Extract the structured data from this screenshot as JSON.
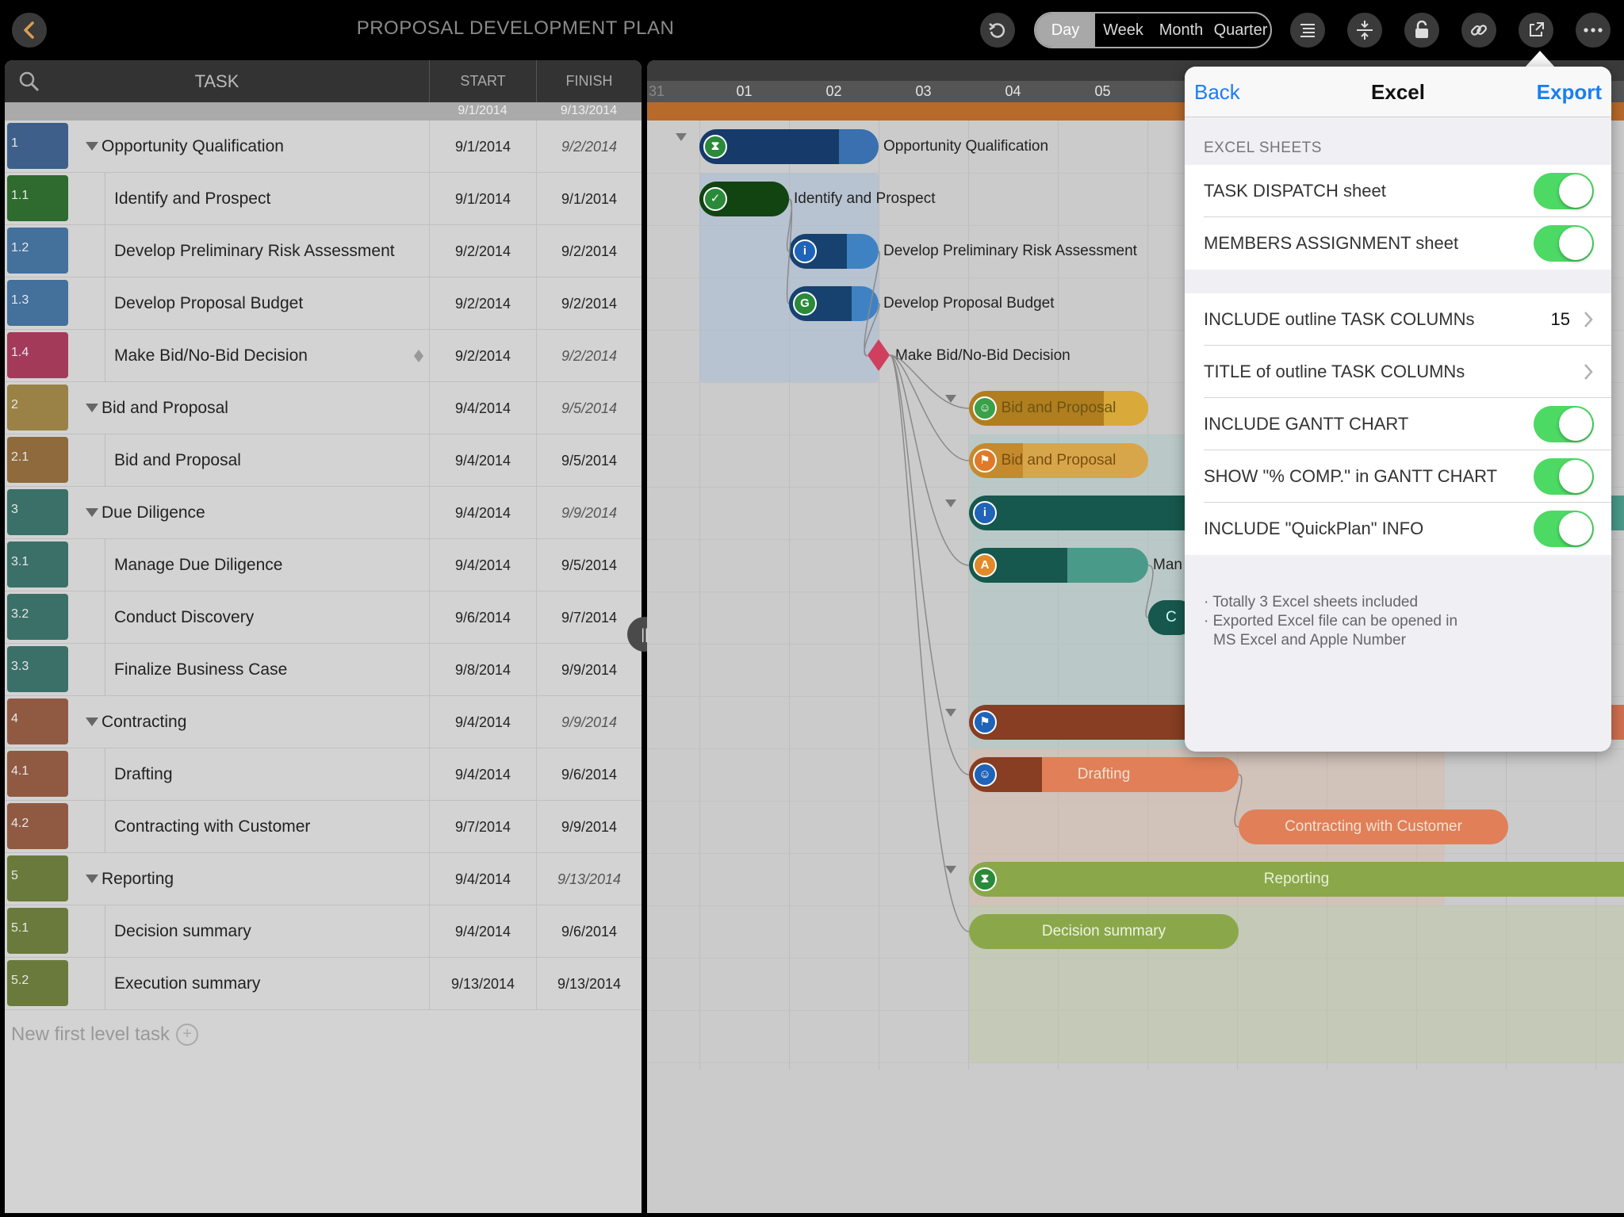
{
  "header": {
    "title": "PROPOSAL DEVELOPMENT PLAN",
    "scale_tabs": [
      {
        "label": "Day",
        "active": true
      },
      {
        "label": "Week",
        "active": false
      },
      {
        "label": "Month",
        "active": false
      },
      {
        "label": "Quarter",
        "active": false
      }
    ],
    "icons": [
      "back-icon",
      "undo-icon",
      "outline-icon",
      "expand-icon",
      "lock-icon",
      "link-icon",
      "share-icon",
      "more-icon"
    ]
  },
  "task_table": {
    "columns": {
      "task": "TASK",
      "start": "START",
      "finish": "FINISH"
    },
    "summary": {
      "start": "9/1/2014",
      "finish": "9/13/2014"
    },
    "rows": [
      {
        "num": "1",
        "name": "Opportunity Qualification",
        "start": "9/1/2014",
        "finish": "9/2/2014",
        "level": 1,
        "color": "#3e5f8a"
      },
      {
        "num": "1.1",
        "name": "Identify and Prospect",
        "start": "9/1/2014",
        "finish": "9/1/2014",
        "level": 2,
        "color": "#2f6a2f"
      },
      {
        "num": "1.2",
        "name": "Develop Preliminary Risk Assessment",
        "start": "9/2/2014",
        "finish": "9/2/2014",
        "level": 2,
        "color": "#44709c"
      },
      {
        "num": "1.3",
        "name": "Develop Proposal Budget",
        "start": "9/2/2014",
        "finish": "9/2/2014",
        "level": 2,
        "color": "#44709c"
      },
      {
        "num": "1.4",
        "name": "Make Bid/No-Bid Decision",
        "start": "9/2/2014",
        "finish": "9/2/2014",
        "level": 2,
        "color": "#a33a5a",
        "milestone": true
      },
      {
        "num": "2",
        "name": "Bid and Proposal",
        "start": "9/4/2014",
        "finish": "9/5/2014",
        "level": 1,
        "color": "#9a8246"
      },
      {
        "num": "2.1",
        "name": "Bid and Proposal",
        "start": "9/4/2014",
        "finish": "9/5/2014",
        "level": 2,
        "color": "#8e6a3c"
      },
      {
        "num": "3",
        "name": "Due Diligence",
        "start": "9/4/2014",
        "finish": "9/9/2014",
        "level": 1,
        "color": "#3b7068"
      },
      {
        "num": "3.1",
        "name": "Manage Due Diligence",
        "start": "9/4/2014",
        "finish": "9/5/2014",
        "level": 2,
        "color": "#3b7068"
      },
      {
        "num": "3.2",
        "name": "Conduct Discovery",
        "start": "9/6/2014",
        "finish": "9/7/2014",
        "level": 2,
        "color": "#3b7068"
      },
      {
        "num": "3.3",
        "name": "Finalize Business Case",
        "start": "9/8/2014",
        "finish": "9/9/2014",
        "level": 2,
        "color": "#3b7068"
      },
      {
        "num": "4",
        "name": "Contracting",
        "start": "9/4/2014",
        "finish": "9/9/2014",
        "level": 1,
        "color": "#905a42"
      },
      {
        "num": "4.1",
        "name": "Drafting",
        "start": "9/4/2014",
        "finish": "9/6/2014",
        "level": 2,
        "color": "#905a42"
      },
      {
        "num": "4.2",
        "name": "Contracting with Customer",
        "start": "9/7/2014",
        "finish": "9/9/2014",
        "level": 2,
        "color": "#905a42"
      },
      {
        "num": "5",
        "name": "Reporting",
        "start": "9/4/2014",
        "finish": "9/13/2014",
        "level": 1,
        "color": "#6a7a3c"
      },
      {
        "num": "5.1",
        "name": "Decision summary",
        "start": "9/4/2014",
        "finish": "9/6/2014",
        "level": 2,
        "color": "#6a7a3c"
      },
      {
        "num": "5.2",
        "name": "Execution summary",
        "start": "9/13/2014",
        "finish": "9/13/2014",
        "level": 2,
        "color": "#6a7a3c"
      }
    ],
    "new_task_label": "New first level task"
  },
  "gantt": {
    "days": [
      "31",
      "01",
      "02",
      "03",
      "04",
      "05"
    ],
    "bars": [
      {
        "label": "Opportunity Qualification",
        "icon": "hourglass-icon",
        "icon_text": "⧗",
        "color": "#3a6fb0",
        "fill_color": "#163a6a",
        "progress": 0.78
      },
      {
        "label": "Identify and Prospect",
        "icon": "check-icon",
        "icon_text": "✓",
        "color": "#1f5f1f",
        "fill_color": "#114411",
        "progress": 1.0
      },
      {
        "label": "Develop Preliminary Risk Assessment",
        "icon": "info-icon",
        "icon_text": "i",
        "color": "#3f82c4",
        "fill_color": "#17426f",
        "progress": 0.65
      },
      {
        "label": "Develop Proposal Budget",
        "icon": "g-icon",
        "icon_text": "G",
        "color": "#3f82c4",
        "fill_color": "#17426f",
        "progress": 0.7
      },
      {
        "label": "Make Bid/No-Bid Decision"
      },
      {
        "label": "Bid and Proposal",
        "icon": "smile-icon",
        "icon_text": "☺",
        "color": "#d9aa3a",
        "fill_color": "#b07e1f",
        "progress": 0.75
      },
      {
        "label": "Bid and Proposal",
        "icon": "flag-icon",
        "icon_text": "⚑",
        "color": "#d8a64a",
        "fill_color": "#c48a2c",
        "progress": 0.3
      },
      {
        "label": "",
        "icon": "info-icon",
        "icon_text": "i",
        "color": "#4a9a8a",
        "fill_color": "#17584e",
        "progress": 0.6
      },
      {
        "label": "Man",
        "icon": "a-icon",
        "icon_text": "A",
        "color": "#4a9a8a",
        "fill_color": "#17584e",
        "progress": 0.55
      },
      {
        "label": "C",
        "icon": "none",
        "icon_text": "",
        "color": "#17584e",
        "fill_color": "#17584e",
        "progress": 1.0
      },
      {
        "label": "",
        "icon": "flag-icon",
        "icon_text": "⚑",
        "color": "#d07050",
        "fill_color": "#873e22",
        "progress": 0.35
      },
      {
        "label": "Drafting",
        "icon": "smile-icon",
        "icon_text": "☺",
        "color": "#e07f58",
        "fill_color": "#873e22",
        "progress": 0.27
      },
      {
        "label": "Contracting with Customer",
        "color": "#e07f58"
      },
      {
        "label": "Reporting",
        "icon": "hourglass-icon",
        "icon_text": "⧗",
        "color": "#8aa84a"
      },
      {
        "label": "Decision summary",
        "color": "#8aa84a"
      }
    ]
  },
  "excel_popover": {
    "back": "Back",
    "title": "Excel",
    "export": "Export",
    "section_title": "EXCEL SHEETS",
    "sheets": [
      {
        "label": "TASK DISPATCH sheet",
        "on": true
      },
      {
        "label": "MEMBERS ASSIGNMENT sheet",
        "on": true
      }
    ],
    "options": [
      {
        "label": "INCLUDE outline TASK COLUMNs",
        "value": "15",
        "type": "nav"
      },
      {
        "label": "TITLE of outline TASK COLUMNs",
        "type": "nav"
      },
      {
        "label": "INCLUDE GANTT CHART",
        "on": true,
        "type": "toggle"
      },
      {
        "label": "SHOW \"% COMP.\" in GANTT CHART",
        "on": true,
        "type": "toggle"
      },
      {
        "label": "INCLUDE \"QuickPlan\" INFO",
        "on": true,
        "type": "toggle"
      }
    ],
    "notes": [
      "· Totally 3 Excel sheets included",
      "· Exported Excel file can be opened in",
      "  MS Excel and Apple Number"
    ]
  },
  "colors": {
    "accent": "#1a7ef5",
    "toggle_on": "#4cd964",
    "back_arrow": "#d8a052",
    "milestone": "#d0405e"
  }
}
